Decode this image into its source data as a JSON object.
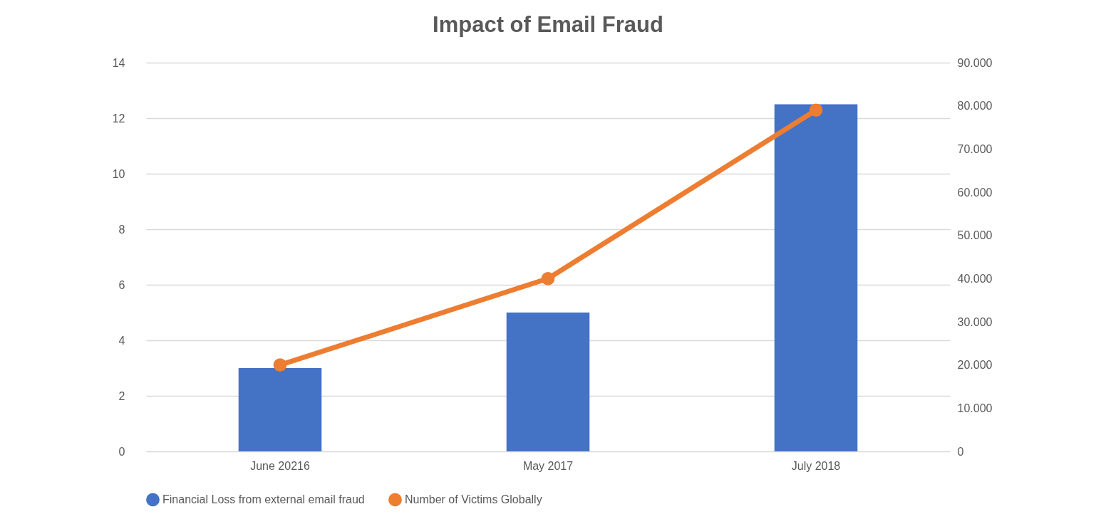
{
  "chart_data": {
    "type": "bar",
    "title": "Impact of Email Fraud",
    "categories": [
      "June 20216",
      "May 2017",
      "July 2018"
    ],
    "series": [
      {
        "name": "Financial Loss from external email fraud",
        "color": "#4472c4",
        "values": [
          3,
          5,
          12.5
        ]
      },
      {
        "name": "Number of Victims Globally",
        "type": "line",
        "axis": "y2",
        "color": "#ed7d31",
        "values": [
          20000,
          40000,
          79000
        ]
      }
    ],
    "ylim": [
      0,
      14
    ],
    "yticks": [
      0,
      2,
      4,
      6,
      8,
      10,
      12,
      14
    ],
    "y2lim": [
      0,
      90000
    ],
    "y2ticks": [
      {
        "value": 0,
        "label": "0"
      },
      {
        "value": 10000,
        "label": "10.000"
      },
      {
        "value": 20000,
        "label": "20.000"
      },
      {
        "value": 30000,
        "label": "30.000"
      },
      {
        "value": 40000,
        "label": "40.000"
      },
      {
        "value": 50000,
        "label": "50.000"
      },
      {
        "value": 60000,
        "label": "60.000"
      },
      {
        "value": 70000,
        "label": "70.000"
      },
      {
        "value": 80000,
        "label": "80.000"
      },
      {
        "value": 90000,
        "label": "90.000"
      }
    ],
    "grid": "y",
    "legend": "bottom",
    "marker": "circle"
  }
}
